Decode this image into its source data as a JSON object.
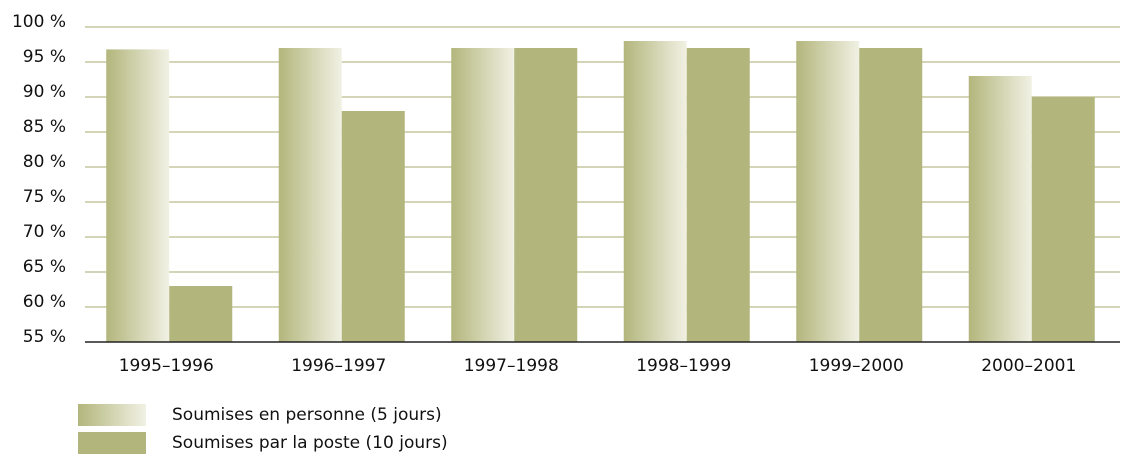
{
  "chart_data": {
    "type": "bar",
    "categories": [
      "1995–1996",
      "1996–1997",
      "1997–1998",
      "1998–1999",
      "1999–2000",
      "2000–2001"
    ],
    "series": [
      {
        "name": "Soumises en personne (5 jours)",
        "color": "#b3b67c",
        "gradient": true,
        "values": [
          96.8,
          97,
          97,
          98,
          98,
          93
        ]
      },
      {
        "name": "Soumises par la poste (10 jours)",
        "color": "#b3b67c",
        "values": [
          63,
          88,
          97,
          97,
          97,
          90
        ]
      }
    ],
    "ylim": [
      55,
      100
    ],
    "yticks": [
      {
        "value": 55,
        "label": "55 %"
      },
      {
        "value": 60,
        "label": "60 %"
      },
      {
        "value": 65,
        "label": "65 %"
      },
      {
        "value": 70,
        "label": "70 %"
      },
      {
        "value": 75,
        "label": "75 %"
      },
      {
        "value": 80,
        "label": "80 %"
      },
      {
        "value": 85,
        "label": "85 %"
      },
      {
        "value": 90,
        "label": "90 %"
      },
      {
        "value": 95,
        "label": "95 %"
      },
      {
        "value": 100,
        "label": "100 %"
      }
    ],
    "grid": true
  }
}
